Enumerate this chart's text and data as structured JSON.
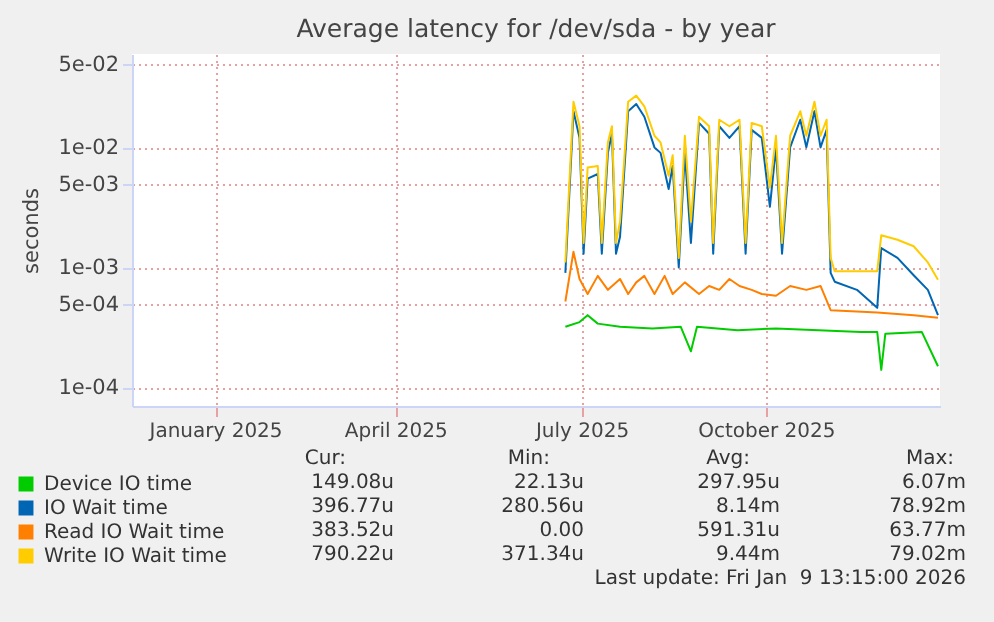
{
  "chart_data": {
    "type": "line",
    "title": "Average latency for /dev/sda - by year",
    "ylabel": "seconds",
    "log": true,
    "grid": true,
    "legend": "bottom left",
    "xlim": [
      "2024-12-06",
      "2026-01-09"
    ],
    "xticks": [
      {
        "value": "2025-01-16",
        "label": "January 2025"
      },
      {
        "value": "2025-04-15",
        "label": "April 2025"
      },
      {
        "value": "2025-07-16",
        "label": "July 2025"
      },
      {
        "value": "2025-10-15",
        "label": "October 2025"
      }
    ],
    "ylim": [
      7e-05,
      0.06
    ],
    "yticks": [
      {
        "value": 0.05,
        "label": "5e-02"
      },
      {
        "value": 0.01,
        "label": "1e-02"
      },
      {
        "value": 0.005,
        "label": "5e-03"
      },
      {
        "value": 0.001,
        "label": "1e-03"
      },
      {
        "value": 0.0005,
        "label": "5e-04"
      },
      {
        "value": 0.0001,
        "label": "1e-04"
      }
    ],
    "series": [
      {
        "name": "Device IO time",
        "color": "#00cc00",
        "x": [
          "2025-07-08",
          "2025-07-15",
          "2025-07-19",
          "2025-07-24",
          "2025-08-04",
          "2025-08-20",
          "2025-09-03",
          "2025-09-08",
          "2025-09-11",
          "2025-10-01",
          "2025-10-20",
          "2025-11-10",
          "2025-12-01",
          "2025-12-09",
          "2025-12-11",
          "2025-12-13",
          "2025-12-31",
          "2026-01-08"
        ],
        "values": [
          0.00032,
          0.00035,
          0.0004,
          0.00034,
          0.00032,
          0.00031,
          0.00032,
          0.0002,
          0.00032,
          0.0003,
          0.00031,
          0.0003,
          0.00029,
          0.00029,
          0.00014,
          0.00028,
          0.00029,
          0.00015
        ]
      },
      {
        "name": "IO Wait time",
        "color": "#0066b3",
        "x": [
          "2025-07-08",
          "2025-07-12",
          "2025-07-15",
          "2025-07-17",
          "2025-07-19",
          "2025-07-24",
          "2025-07-26",
          "2025-07-29",
          "2025-07-31",
          "2025-08-02",
          "2025-08-04",
          "2025-08-08",
          "2025-08-12",
          "2025-08-16",
          "2025-08-21",
          "2025-08-24",
          "2025-08-28",
          "2025-08-30",
          "2025-09-02",
          "2025-09-05",
          "2025-09-08",
          "2025-09-12",
          "2025-09-17",
          "2025-09-19",
          "2025-09-22",
          "2025-09-27",
          "2025-10-02",
          "2025-10-05",
          "2025-10-08",
          "2025-10-13",
          "2025-10-17",
          "2025-10-20",
          "2025-10-23",
          "2025-10-27",
          "2025-11-01",
          "2025-11-04",
          "2025-11-08",
          "2025-11-11",
          "2025-11-14",
          "2025-11-16",
          "2025-11-18",
          "2025-11-29",
          "2025-12-09",
          "2025-12-11",
          "2025-12-19",
          "2025-12-27",
          "2026-01-03",
          "2026-01-08"
        ],
        "values": [
          0.0009,
          0.02,
          0.012,
          0.0013,
          0.0055,
          0.006,
          0.0013,
          0.009,
          0.013,
          0.0013,
          0.0018,
          0.02,
          0.023,
          0.018,
          0.01,
          0.009,
          0.0045,
          0.007,
          0.001,
          0.009,
          0.0016,
          0.016,
          0.013,
          0.0013,
          0.015,
          0.012,
          0.015,
          0.0013,
          0.014,
          0.012,
          0.0032,
          0.01,
          0.0013,
          0.01,
          0.017,
          0.01,
          0.02,
          0.01,
          0.014,
          0.0009,
          0.00076,
          0.00065,
          0.00046,
          0.00145,
          0.0012,
          0.00086,
          0.00065,
          0.0004
        ]
      },
      {
        "name": "Read IO Wait time",
        "color": "#ff8000",
        "x": [
          "2025-07-08",
          "2025-07-12",
          "2025-07-15",
          "2025-07-19",
          "2025-07-24",
          "2025-07-29",
          "2025-08-04",
          "2025-08-08",
          "2025-08-12",
          "2025-08-16",
          "2025-08-21",
          "2025-08-26",
          "2025-08-30",
          "2025-09-05",
          "2025-09-12",
          "2025-09-17",
          "2025-09-22",
          "2025-09-27",
          "2025-10-02",
          "2025-10-08",
          "2025-10-13",
          "2025-10-20",
          "2025-10-27",
          "2025-11-04",
          "2025-11-11",
          "2025-11-16",
          "2025-12-09",
          "2025-12-27",
          "2026-01-08"
        ],
        "values": [
          0.00052,
          0.00135,
          0.0008,
          0.0006,
          0.00085,
          0.00065,
          0.0008,
          0.0006,
          0.00075,
          0.00085,
          0.0006,
          0.00085,
          0.0006,
          0.00075,
          0.0006,
          0.0007,
          0.00065,
          0.0008,
          0.0007,
          0.00065,
          0.0006,
          0.00058,
          0.0007,
          0.00065,
          0.0007,
          0.00044,
          0.00042,
          0.0004,
          0.00038
        ]
      },
      {
        "name": "Write IO Wait time",
        "color": "#ffcc00",
        "x": [
          "2025-07-08",
          "2025-07-12",
          "2025-07-15",
          "2025-07-17",
          "2025-07-19",
          "2025-07-24",
          "2025-07-26",
          "2025-07-29",
          "2025-07-31",
          "2025-08-02",
          "2025-08-04",
          "2025-08-08",
          "2025-08-12",
          "2025-08-16",
          "2025-08-21",
          "2025-08-24",
          "2025-08-28",
          "2025-08-30",
          "2025-09-02",
          "2025-09-05",
          "2025-09-08",
          "2025-09-12",
          "2025-09-17",
          "2025-09-19",
          "2025-09-22",
          "2025-09-27",
          "2025-10-02",
          "2025-10-05",
          "2025-10-08",
          "2025-10-13",
          "2025-10-17",
          "2025-10-20",
          "2025-10-23",
          "2025-10-27",
          "2025-11-01",
          "2025-11-04",
          "2025-11-08",
          "2025-11-11",
          "2025-11-14",
          "2025-11-16",
          "2025-11-18",
          "2025-11-29",
          "2025-12-09",
          "2025-12-11",
          "2025-12-19",
          "2025-12-27",
          "2026-01-03",
          "2026-01-08"
        ],
        "values": [
          0.0011,
          0.024,
          0.015,
          0.0016,
          0.0068,
          0.007,
          0.0016,
          0.011,
          0.015,
          0.0016,
          0.0024,
          0.024,
          0.027,
          0.022,
          0.0125,
          0.011,
          0.0058,
          0.0086,
          0.0012,
          0.0125,
          0.0024,
          0.018,
          0.015,
          0.0016,
          0.017,
          0.015,
          0.017,
          0.0016,
          0.016,
          0.015,
          0.0046,
          0.0125,
          0.0016,
          0.0125,
          0.02,
          0.0125,
          0.024,
          0.0125,
          0.017,
          0.0012,
          0.00093,
          0.00093,
          0.00093,
          0.00185,
          0.0017,
          0.0015,
          0.0011,
          0.00079
        ]
      }
    ],
    "annotations": [
      "Cur:",
      "Min:",
      "Avg:",
      "Max:",
      "149.08u",
      "22.13u",
      "297.95u",
      "6.07m",
      "396.77u",
      "280.56u",
      "8.14m",
      "78.92m",
      "383.52u",
      "0.00",
      "591.31u",
      "63.77m",
      "790.22u",
      "371.34u",
      "9.44m",
      "79.02m",
      "Last update: Fri Jan  9 13:15:00 2026"
    ]
  }
}
